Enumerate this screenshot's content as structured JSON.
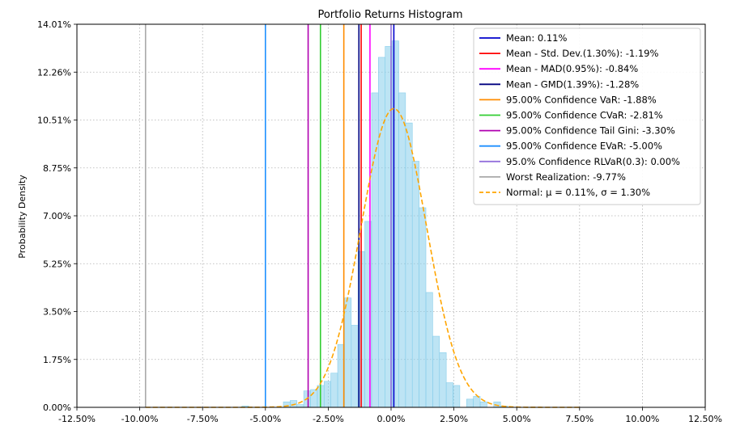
{
  "chart_data": {
    "type": "bar",
    "title": "Portfolio Returns Histogram",
    "xlabel": "",
    "ylabel": "Probability Density",
    "xlim": [
      -12.5,
      12.5
    ],
    "ylim": [
      0,
      14.01
    ],
    "grid": true,
    "legend_position": "top-right",
    "x_ticks": [
      "-12.50%",
      "-10.00%",
      "-7.50%",
      "-5.00%",
      "-2.50%",
      "0.00%",
      "2.50%",
      "5.00%",
      "7.50%",
      "10.00%",
      "12.50%"
    ],
    "y_ticks": [
      "0.00%",
      "1.75%",
      "3.50%",
      "5.25%",
      "7.00%",
      "8.75%",
      "10.51%",
      "12.26%",
      "14.01%"
    ],
    "histogram": {
      "bin_width": 0.27,
      "color": "#87ceeb",
      "bins": [
        {
          "x": -5.8,
          "y": 0.05
        },
        {
          "x": -4.15,
          "y": 0.2
        },
        {
          "x": -3.88,
          "y": 0.25
        },
        {
          "x": -3.61,
          "y": 0.1
        },
        {
          "x": -3.34,
          "y": 0.6
        },
        {
          "x": -3.07,
          "y": 0.65
        },
        {
          "x": -2.8,
          "y": 0.8
        },
        {
          "x": -2.53,
          "y": 0.95
        },
        {
          "x": -2.26,
          "y": 1.25
        },
        {
          "x": -1.99,
          "y": 2.3
        },
        {
          "x": -1.72,
          "y": 4.0
        },
        {
          "x": -1.45,
          "y": 3.0
        },
        {
          "x": -1.18,
          "y": 5.7
        },
        {
          "x": -0.91,
          "y": 6.8
        },
        {
          "x": -0.64,
          "y": 11.5
        },
        {
          "x": -0.37,
          "y": 12.8
        },
        {
          "x": -0.1,
          "y": 13.2
        },
        {
          "x": 0.17,
          "y": 13.4
        },
        {
          "x": 0.44,
          "y": 11.5
        },
        {
          "x": 0.71,
          "y": 10.4
        },
        {
          "x": 0.98,
          "y": 9.0
        },
        {
          "x": 1.25,
          "y": 7.3
        },
        {
          "x": 1.52,
          "y": 4.2
        },
        {
          "x": 1.79,
          "y": 2.6
        },
        {
          "x": 2.06,
          "y": 2.0
        },
        {
          "x": 2.33,
          "y": 0.9
        },
        {
          "x": 2.6,
          "y": 0.8
        },
        {
          "x": 3.14,
          "y": 0.3
        },
        {
          "x": 3.41,
          "y": 0.4
        },
        {
          "x": 3.68,
          "y": 0.2
        },
        {
          "x": 4.22,
          "y": 0.2
        },
        {
          "x": 4.49,
          "y": 0.05
        }
      ]
    },
    "normal_curve": {
      "mu": 0.11,
      "sigma": 1.3,
      "x_range": [
        -9.77,
        7.5
      ],
      "color": "#ffa500"
    },
    "vlines": [
      {
        "name": "Worst Realization: -9.77%",
        "x": -9.77,
        "color": "#a9a9a9"
      },
      {
        "name": "95.00% Confidence EVaR: -5.00%",
        "x": -5.0,
        "color": "#1e90ff"
      },
      {
        "name": "95.00% Confidence Tail Gini: -3.30%",
        "x": -3.3,
        "color": "#b000b0"
      },
      {
        "name": "95.00% Confidence CVaR: -2.81%",
        "x": -2.81,
        "color": "#32cd32"
      },
      {
        "name": "95.00% Confidence VaR: -1.88%",
        "x": -1.88,
        "color": "#ff8c00"
      },
      {
        "name": "Mean - GMD(1.39%): -1.28%",
        "x": -1.28,
        "color": "#000080"
      },
      {
        "name": "Mean - Std. Dev.(1.30%): -1.19%",
        "x": -1.19,
        "color": "#ff0000"
      },
      {
        "name": "Mean - MAD(0.95%): -0.84%",
        "x": -0.84,
        "color": "#ff00ff"
      },
      {
        "name": "Mean: 0.11%",
        "x": 0.11,
        "color": "#0000cd"
      },
      {
        "name": "95.0% Confidence RLVaR(0.3): 0.00%",
        "x": 0.0,
        "color": "#9370db"
      }
    ],
    "legend": [
      {
        "label": "Mean: 0.11%",
        "color": "#0000cd",
        "style": "solid"
      },
      {
        "label": "Mean - Std. Dev.(1.30%): -1.19%",
        "color": "#ff0000",
        "style": "solid"
      },
      {
        "label": "Mean - MAD(0.95%): -0.84%",
        "color": "#ff00ff",
        "style": "solid"
      },
      {
        "label": "Mean - GMD(1.39%): -1.28%",
        "color": "#000080",
        "style": "solid"
      },
      {
        "label": "95.00% Confidence VaR: -1.88%",
        "color": "#ff8c00",
        "style": "solid"
      },
      {
        "label": "95.00% Confidence CVaR: -2.81%",
        "color": "#32cd32",
        "style": "solid"
      },
      {
        "label": "95.00% Confidence Tail Gini: -3.30%",
        "color": "#b000b0",
        "style": "solid"
      },
      {
        "label": "95.00% Confidence EVaR: -5.00%",
        "color": "#1e90ff",
        "style": "solid"
      },
      {
        "label": "95.0% Confidence RLVaR(0.3): 0.00%",
        "color": "#9370db",
        "style": "solid"
      },
      {
        "label": "Worst Realization: -9.77%",
        "color": "#a9a9a9",
        "style": "solid"
      },
      {
        "label": "Normal: μ = 0.11%, σ = 1.30%",
        "color": "#ffa500",
        "style": "dashed"
      }
    ]
  }
}
